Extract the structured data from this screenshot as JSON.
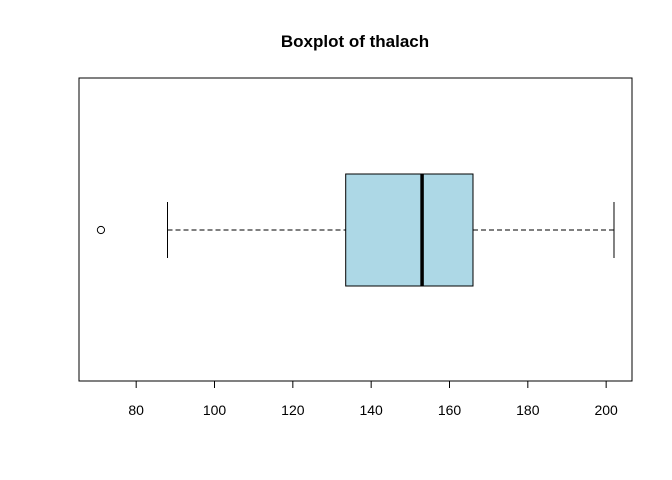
{
  "chart_data": {
    "type": "boxplot",
    "orientation": "horizontal",
    "title": "Boxplot of thalach",
    "xlabel": "",
    "ylabel": "",
    "xlim": [
      65.4,
      206.6
    ],
    "ticks": [
      80,
      100,
      120,
      140,
      160,
      180,
      200
    ],
    "tick_labels": [
      "80",
      "100",
      "120",
      "140",
      "160",
      "180",
      "200"
    ],
    "series": [
      {
        "whisker_low": 88,
        "q1": 133.5,
        "median": 153,
        "q3": 166,
        "whisker_high": 202,
        "outliers": [
          71
        ]
      }
    ],
    "box_fill": "#add8e6",
    "grid": false,
    "legend": "none"
  }
}
